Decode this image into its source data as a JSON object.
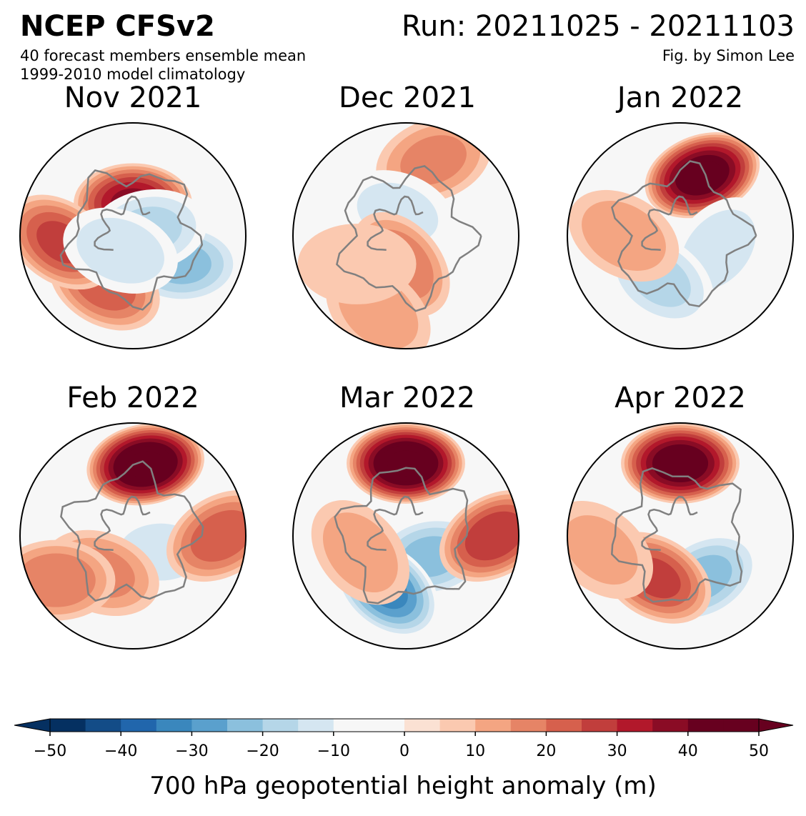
{
  "header": {
    "title": "NCEP CFSv2",
    "run": "Run: 20211025 - 20211103",
    "subtitle_1": "40 forecast members ensemble mean",
    "subtitle_2": "1999-2010 model climatology",
    "credit": "Fig. by Simon Lee"
  },
  "panels": [
    {
      "label": "Nov 2021",
      "anomalies": [
        {
          "lon": 0,
          "lat": 70,
          "value": 35
        },
        {
          "lon": -120,
          "lat": 55,
          "value": -20
        },
        {
          "lon": 150,
          "lat": 55,
          "value": 22
        },
        {
          "lon": 95,
          "lat": 45,
          "value": 25
        },
        {
          "lon": -70,
          "lat": 80,
          "value": -15
        },
        {
          "lon": 140,
          "lat": 78,
          "value": -12
        }
      ]
    },
    {
      "label": "Dec 2021",
      "anomalies": [
        {
          "lon": -20,
          "lat": 40,
          "value": 15
        },
        {
          "lon": 20,
          "lat": 75,
          "value": -10
        },
        {
          "lon": 170,
          "lat": 72,
          "value": 18
        },
        {
          "lon": 160,
          "lat": 40,
          "value": 12
        },
        {
          "lon": 120,
          "lat": 55,
          "value": 8
        }
      ]
    },
    {
      "label": "Jan 2022",
      "anomalies": [
        {
          "lon": -20,
          "lat": 50,
          "value": 45
        },
        {
          "lon": -110,
          "lat": 65,
          "value": -12
        },
        {
          "lon": 155,
          "lat": 60,
          "value": -15
        },
        {
          "lon": 90,
          "lat": 55,
          "value": 12
        }
      ]
    },
    {
      "label": "Feb 2022",
      "anomalies": [
        {
          "lon": -10,
          "lat": 45,
          "value": 50
        },
        {
          "lon": -120,
          "lat": 70,
          "value": -10
        },
        {
          "lon": 140,
          "lat": 60,
          "value": 15
        },
        {
          "lon": 120,
          "lat": 35,
          "value": 18
        },
        {
          "lon": -90,
          "lat": 35,
          "value": 22
        }
      ]
    },
    {
      "label": "Mar 2022",
      "anomalies": [
        {
          "lon": 0,
          "lat": 45,
          "value": 50
        },
        {
          "lon": -130,
          "lat": 70,
          "value": -20
        },
        {
          "lon": 160,
          "lat": 55,
          "value": -30
        },
        {
          "lon": -90,
          "lat": 35,
          "value": 28
        },
        {
          "lon": 110,
          "lat": 60,
          "value": 12
        }
      ]
    },
    {
      "label": "Apr 2022",
      "anomalies": [
        {
          "lon": 0,
          "lat": 45,
          "value": 45
        },
        {
          "lon": -150,
          "lat": 60,
          "value": -20
        },
        {
          "lon": 150,
          "lat": 60,
          "value": 25
        },
        {
          "lon": 100,
          "lat": 40,
          "value": 10
        }
      ]
    }
  ],
  "colorbar": {
    "label": "700 hPa geopotential height anomaly (m)",
    "min": -50,
    "max": 50,
    "step": 5,
    "ticks": [
      "−50",
      "−40",
      "−30",
      "−20",
      "−10",
      "0",
      "10",
      "20",
      "30",
      "40",
      "50"
    ],
    "colors": [
      "#053061",
      "#134c87",
      "#2166ac",
      "#3a87bd",
      "#5aa0cd",
      "#8bc0dd",
      "#b5d6e8",
      "#d5e6f1",
      "#f7f7f7",
      "#f7f7f7",
      "#fbe1d3",
      "#fbc9b0",
      "#f4a582",
      "#e68466",
      "#d6604d",
      "#c13e3c",
      "#b2182b",
      "#8a0c25",
      "#67001f",
      "#67001f"
    ],
    "under_color": "#053061",
    "over_color": "#67001f"
  }
}
